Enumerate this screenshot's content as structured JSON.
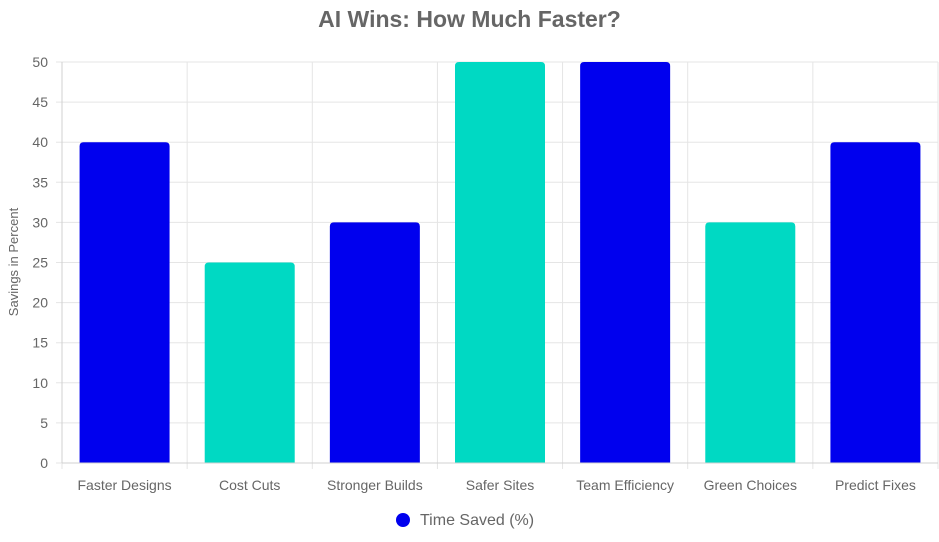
{
  "chart_data": {
    "type": "bar",
    "title": "AI Wins: How Much Faster?",
    "xlabel": "",
    "ylabel": "Savings in Percent",
    "categories": [
      "Faster Designs",
      "Cost Cuts",
      "Stronger Builds",
      "Safer Sites",
      "Team Efficiency",
      "Green Choices",
      "Predict Fixes"
    ],
    "series": [
      {
        "name": "Time Saved (%)",
        "values": [
          40,
          25,
          30,
          50,
          50,
          30,
          40
        ]
      }
    ],
    "bar_colors": [
      "#0000ee",
      "#00d9c3",
      "#0000ee",
      "#00d9c3",
      "#0000ee",
      "#00d9c3",
      "#0000ee"
    ],
    "legend_color": "#0000ee",
    "ylim": [
      0,
      50
    ],
    "yticks": [
      0,
      5,
      10,
      15,
      20,
      25,
      30,
      35,
      40,
      45,
      50
    ],
    "grid": true,
    "legend_position": "bottom"
  }
}
